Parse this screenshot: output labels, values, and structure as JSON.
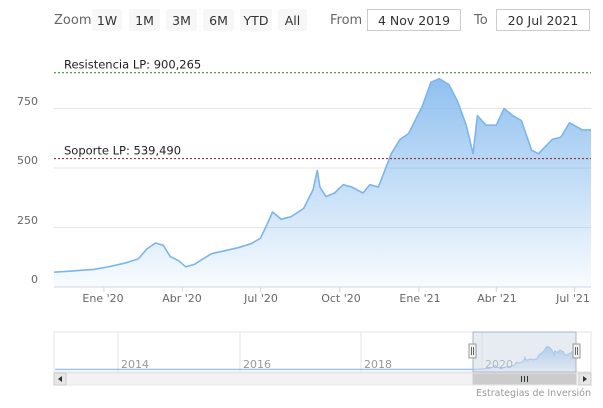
{
  "range_selector": {
    "zoom_label": "Zoom",
    "buttons": [
      "1W",
      "1M",
      "3M",
      "6M",
      "YTD",
      "All"
    ],
    "from_label": "From",
    "from_value": "4 Nov 2019",
    "to_label": "To",
    "to_value": "20 Jul 2021"
  },
  "colors": {
    "series_line": "#7cb5ec",
    "area_top": "#7cb5ec",
    "resistance_line": "#2e7d32",
    "support_line": "#8b1a2b",
    "navigator_mask": "#cfd8e6"
  },
  "chart_data": {
    "type": "area",
    "title": "",
    "xlabel": "",
    "ylabel": "",
    "x_ticks": [
      "Ene '20",
      "Abr '20",
      "Jul '20",
      "Oct '20",
      "Ene '21",
      "Abr '21",
      "Jul '21"
    ],
    "y_ticks": [
      "0",
      "250",
      "500",
      "750"
    ],
    "ylim": [
      0,
      950
    ],
    "grid": true,
    "series": [
      {
        "values": [
          [
            "2019-11-04",
            62
          ],
          [
            "2019-11-20",
            66
          ],
          [
            "2019-12-05",
            70
          ],
          [
            "2019-12-20",
            74
          ],
          [
            "2020-01-05",
            84
          ],
          [
            "2020-01-25",
            100
          ],
          [
            "2020-02-10",
            118
          ],
          [
            "2020-02-20",
            160
          ],
          [
            "2020-03-01",
            185
          ],
          [
            "2020-03-10",
            175
          ],
          [
            "2020-03-18",
            128
          ],
          [
            "2020-03-28",
            110
          ],
          [
            "2020-04-05",
            85
          ],
          [
            "2020-04-15",
            95
          ],
          [
            "2020-04-25",
            118
          ],
          [
            "2020-05-05",
            140
          ],
          [
            "2020-05-20",
            152
          ],
          [
            "2020-06-05",
            165
          ],
          [
            "2020-06-20",
            182
          ],
          [
            "2020-07-01",
            205
          ],
          [
            "2020-07-10",
            275
          ],
          [
            "2020-07-15",
            315
          ],
          [
            "2020-07-25",
            285
          ],
          [
            "2020-08-05",
            295
          ],
          [
            "2020-08-20",
            330
          ],
          [
            "2020-08-31",
            408
          ],
          [
            "2020-09-05",
            490
          ],
          [
            "2020-09-08",
            420
          ],
          [
            "2020-09-15",
            380
          ],
          [
            "2020-09-25",
            395
          ],
          [
            "2020-10-05",
            430
          ],
          [
            "2020-10-15",
            420
          ],
          [
            "2020-10-28",
            395
          ],
          [
            "2020-11-05",
            430
          ],
          [
            "2020-11-15",
            420
          ],
          [
            "2020-11-30",
            560
          ],
          [
            "2020-12-10",
            620
          ],
          [
            "2020-12-20",
            645
          ],
          [
            "2021-01-05",
            760
          ],
          [
            "2021-01-15",
            860
          ],
          [
            "2021-01-25",
            875
          ],
          [
            "2021-02-05",
            850
          ],
          [
            "2021-02-15",
            780
          ],
          [
            "2021-02-25",
            680
          ],
          [
            "2021-03-05",
            560
          ],
          [
            "2021-03-10",
            720
          ],
          [
            "2021-03-20",
            680
          ],
          [
            "2021-04-01",
            680
          ],
          [
            "2021-04-10",
            750
          ],
          [
            "2021-04-20",
            720
          ],
          [
            "2021-04-30",
            700
          ],
          [
            "2021-05-12",
            575
          ],
          [
            "2021-05-20",
            560
          ],
          [
            "2021-06-05",
            620
          ],
          [
            "2021-06-15",
            630
          ],
          [
            "2021-06-25",
            690
          ],
          [
            "2021-07-10",
            660
          ],
          [
            "2021-07-20",
            660
          ]
        ]
      }
    ],
    "reference_lines": [
      {
        "label": "Resistencia LP: 900,265",
        "value": 900.265,
        "style": "dotted"
      },
      {
        "label": "Soporte LP: 539,490",
        "value": 539.49,
        "style": "dotted"
      }
    ],
    "navigator": {
      "year_ticks": [
        "2014",
        "2016",
        "2018",
        "2020"
      ]
    }
  },
  "credits": "Estrategias de Inversión"
}
